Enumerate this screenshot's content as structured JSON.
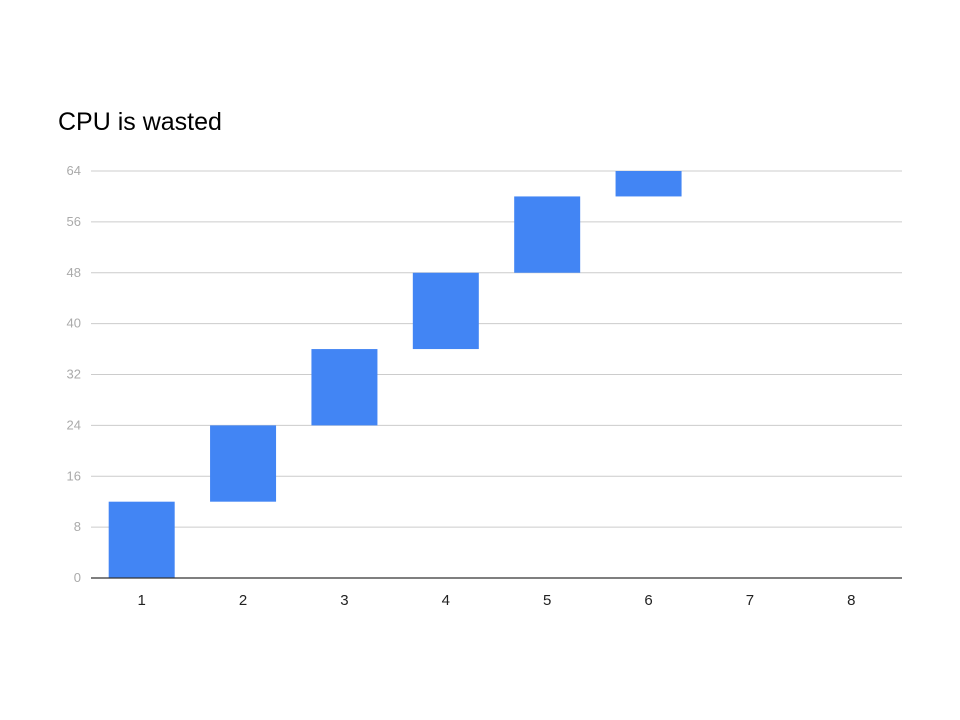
{
  "chart_data": {
    "type": "bar",
    "title": "CPU is wasted",
    "xlabel": "",
    "ylabel": "",
    "categories": [
      "1",
      "2",
      "3",
      "4",
      "5",
      "6",
      "7",
      "8"
    ],
    "series": [
      {
        "ranges": [
          [
            0,
            12
          ],
          [
            12,
            24
          ],
          [
            24,
            36
          ],
          [
            36,
            48
          ],
          [
            48,
            60
          ],
          [
            60,
            64
          ],
          null,
          null
        ]
      }
    ],
    "ylim": [
      0,
      64
    ],
    "yticks": [
      0,
      8,
      16,
      24,
      32,
      40,
      48,
      56,
      64
    ],
    "grid": true,
    "legend": "none",
    "colors": {
      "bar": "#4285f4",
      "grid": "#cccccc",
      "axis": "#333333"
    }
  }
}
